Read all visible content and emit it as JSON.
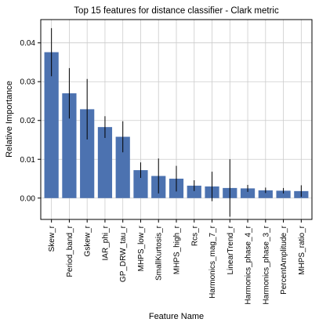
{
  "chart_data": {
    "type": "bar",
    "title": "Top 15 features for distance classifier - Clark metric",
    "xlabel": "Feature Name",
    "ylabel": "Relative Importance",
    "categories": [
      "Skew_r",
      "Period_band_r",
      "Gskew_r",
      "IAR_phi_r",
      "GP_DRW_tau_r",
      "MHPS_low_r",
      "SmallKurtosis_r",
      "MHPS_high_r",
      "Rcs_r",
      "Harmonics_mag_7_r",
      "LinearTrend_r",
      "Harmonics_phase_4_r",
      "Harmonics_phase_3_r",
      "PercentAmplitude_r",
      "MHPS_ratio_r"
    ],
    "values": [
      0.0376,
      0.027,
      0.0229,
      0.0183,
      0.0158,
      0.0072,
      0.0057,
      0.005,
      0.0032,
      0.003,
      0.0026,
      0.0025,
      0.002,
      0.0019,
      0.0018
    ],
    "errors": [
      0.0062,
      0.0065,
      0.0078,
      0.0028,
      0.004,
      0.002,
      0.0045,
      0.0033,
      0.0014,
      0.0038,
      0.0074,
      0.0009,
      0.0007,
      0.0007,
      0.0015
    ],
    "ylim": [
      -0.0055,
      0.046
    ],
    "yticks": [
      0.0,
      0.01,
      0.02,
      0.03,
      0.04
    ],
    "ytick_labels": [
      "0.00",
      "0.01",
      "0.02",
      "0.03",
      "0.04"
    ],
    "grid": true,
    "legend": "none",
    "bar_color": "#4c72b0",
    "error_color": "#000000",
    "grid_color": "#cccccc"
  }
}
